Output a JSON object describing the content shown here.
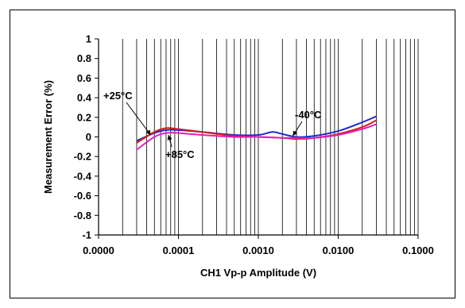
{
  "chart_data": {
    "type": "line",
    "title": "",
    "xlabel": "CH1 Vp-p Amplitude (V)",
    "ylabel": "Measurement Error (%)",
    "xscale": "log",
    "xlim": [
      1e-05,
      0.1
    ],
    "ylim": [
      -1,
      1
    ],
    "x_ticks": [
      1e-05,
      0.0001,
      0.001,
      0.01,
      0.1
    ],
    "x_tick_labels": [
      "0.0000",
      "0.0001",
      "0.0010",
      "0.0100",
      "0.1000"
    ],
    "y_ticks": [
      -1,
      -0.8,
      -0.6,
      -0.4,
      -0.2,
      0,
      0.2,
      0.4,
      0.6,
      0.8,
      1
    ],
    "y_tick_labels": [
      "-1",
      "-0.8",
      "-0.6",
      "-0.4",
      "-0.2",
      "0",
      "0.2",
      "0.4",
      "0.6",
      "0.8",
      "1"
    ],
    "grid": {
      "vertical_minor": true,
      "horizontal": false
    },
    "series": [
      {
        "name": "+25°C",
        "color": "#d81b1b",
        "points": [
          [
            3e-05,
            -0.06
          ],
          [
            5e-05,
            0.05
          ],
          [
            7e-05,
            0.09
          ],
          [
            0.0001,
            0.08
          ],
          [
            0.0002,
            0.05
          ],
          [
            0.0005,
            0.01
          ],
          [
            0.001,
            0.0
          ],
          [
            0.002,
            -0.01
          ],
          [
            0.003,
            -0.02
          ],
          [
            0.005,
            -0.01
          ],
          [
            0.01,
            0.03
          ],
          [
            0.02,
            0.1
          ],
          [
            0.03,
            0.17
          ]
        ]
      },
      {
        "name": "+85°C",
        "color": "#e020c0",
        "points": [
          [
            3e-05,
            -0.13
          ],
          [
            5e-05,
            0.0
          ],
          [
            7e-05,
            0.04
          ],
          [
            0.0001,
            0.04
          ],
          [
            0.0002,
            0.02
          ],
          [
            0.0005,
            0.0
          ],
          [
            0.001,
            0.0
          ],
          [
            0.002,
            -0.01
          ],
          [
            0.003,
            -0.01
          ],
          [
            0.005,
            -0.01
          ],
          [
            0.01,
            0.02
          ],
          [
            0.02,
            0.08
          ],
          [
            0.03,
            0.13
          ]
        ]
      },
      {
        "name": "-40°C",
        "color": "#1a2bd0",
        "points": [
          [
            3e-05,
            -0.04
          ],
          [
            5e-05,
            0.04
          ],
          [
            7e-05,
            0.07
          ],
          [
            0.0001,
            0.07
          ],
          [
            0.0002,
            0.05
          ],
          [
            0.0005,
            0.02
          ],
          [
            0.001,
            0.02
          ],
          [
            0.0015,
            0.05
          ],
          [
            0.002,
            0.03
          ],
          [
            0.003,
            0.0
          ],
          [
            0.005,
            0.01
          ],
          [
            0.01,
            0.06
          ],
          [
            0.02,
            0.15
          ],
          [
            0.03,
            0.21
          ]
        ]
      }
    ],
    "annotations": [
      {
        "text": "+25°C",
        "series": "+25°C",
        "point": [
          4.5e-05,
          0.02
        ]
      },
      {
        "text": "+85°C",
        "series": "+85°C",
        "point": [
          7.5e-05,
          0.02
        ]
      },
      {
        "text": "-40°C",
        "series": "-40°C",
        "point": [
          0.0027,
          0.01
        ]
      }
    ]
  }
}
